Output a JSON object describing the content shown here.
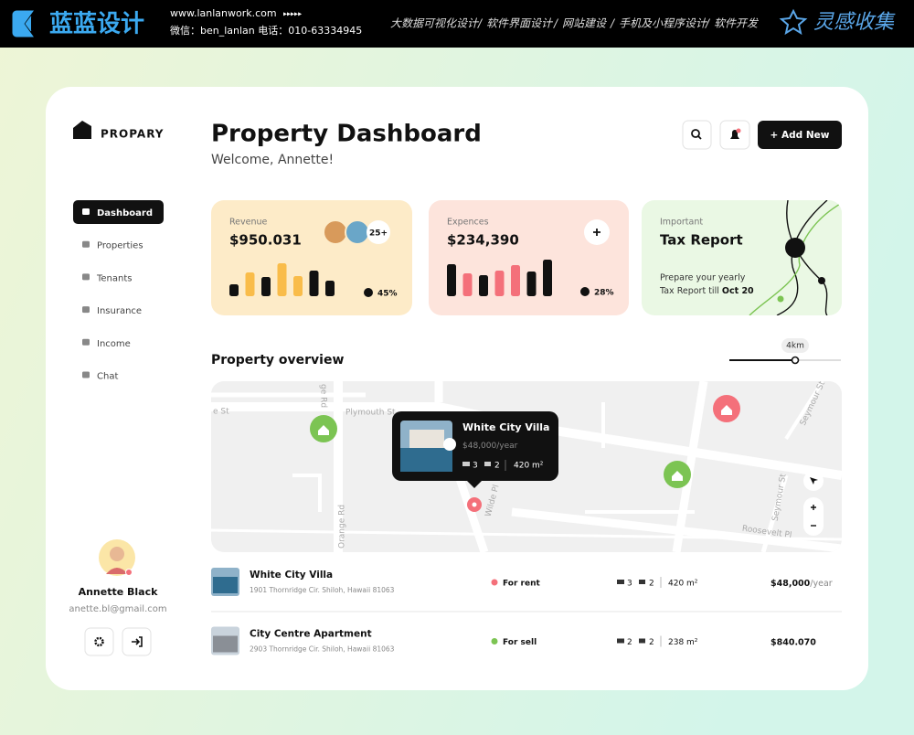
{
  "banner": {
    "logo": "蓝蓝设计",
    "url": "www.lanlanwork.com",
    "arrows": "▸▸▸▸▸",
    "contact": "微信：ben_lanlan    电话：010-63334945",
    "menu": [
      "大数据可视化设计",
      "软件界面设计",
      "网站建设",
      "手机及小程序设计",
      "软件开发"
    ],
    "badge": "灵感收集"
  },
  "sidebar": {
    "brand": "PROPARY",
    "nav": [
      "Dashboard",
      "Properties",
      "Tenants",
      "Insurance",
      "Income",
      "Chat"
    ],
    "active": 0,
    "user": {
      "name": "Annette Black",
      "email": "anette.bl@gmail.com"
    }
  },
  "header": {
    "title": "Property Dashboard",
    "subtitle": "Welcome, Annette!",
    "add_button": "+ Add New"
  },
  "cards": {
    "revenue": {
      "label": "Revenue",
      "amount": "$950.031",
      "avatars_more": "25+",
      "change": "45%",
      "bars": [
        13,
        26,
        21,
        36,
        22,
        28,
        17
      ],
      "bar_colors": [
        "#111111",
        "#f9bc4a",
        "#111111",
        "#f9bc4a",
        "#f9bc4a",
        "#111111",
        "#111111"
      ]
    },
    "expenses": {
      "label": "Expences",
      "amount": "$234,390",
      "change": "28%",
      "bars": [
        35,
        25,
        23,
        28,
        34,
        27,
        40
      ],
      "bar_colors": [
        "#111111",
        "#f4707a",
        "#111111",
        "#f4707a",
        "#f4707a",
        "#111111",
        "#111111"
      ]
    },
    "tax": {
      "label": "Important",
      "title": "Tax Report",
      "line1": "Prepare your yearly",
      "line2": "Tax Report till",
      "date": "Oct 20"
    }
  },
  "overview": {
    "title": "Property overview",
    "radius": "4km",
    "streets": [
      "Plymouth St",
      "Orange Rd",
      "ge Rd",
      "Wilde Pl",
      "Seymour St",
      "Seymour St",
      "Roosevelt Pl",
      "e St"
    ],
    "popup": {
      "title": "White City Villa",
      "price": "$48,000",
      "period": "/year",
      "beds": "3",
      "baths": "2",
      "area": "420 m²"
    }
  },
  "listings": [
    {
      "name": "White City Villa",
      "address": "1901 Thornridge Cir. Shiloh, Hawaii 81063",
      "status": "For rent",
      "status_color": "#f4707a",
      "beds": "3",
      "baths": "2",
      "area": "420 m²",
      "price": "$48,000",
      "period": "/year"
    },
    {
      "name": "City Centre Apartment",
      "address": "2903 Thornridge Cir. Shiloh, Hawaii 81063",
      "status": "For sell",
      "status_color": "#7cc453",
      "beds": "2",
      "baths": "2",
      "area": "238 m²",
      "price": "$840.070"
    }
  ]
}
